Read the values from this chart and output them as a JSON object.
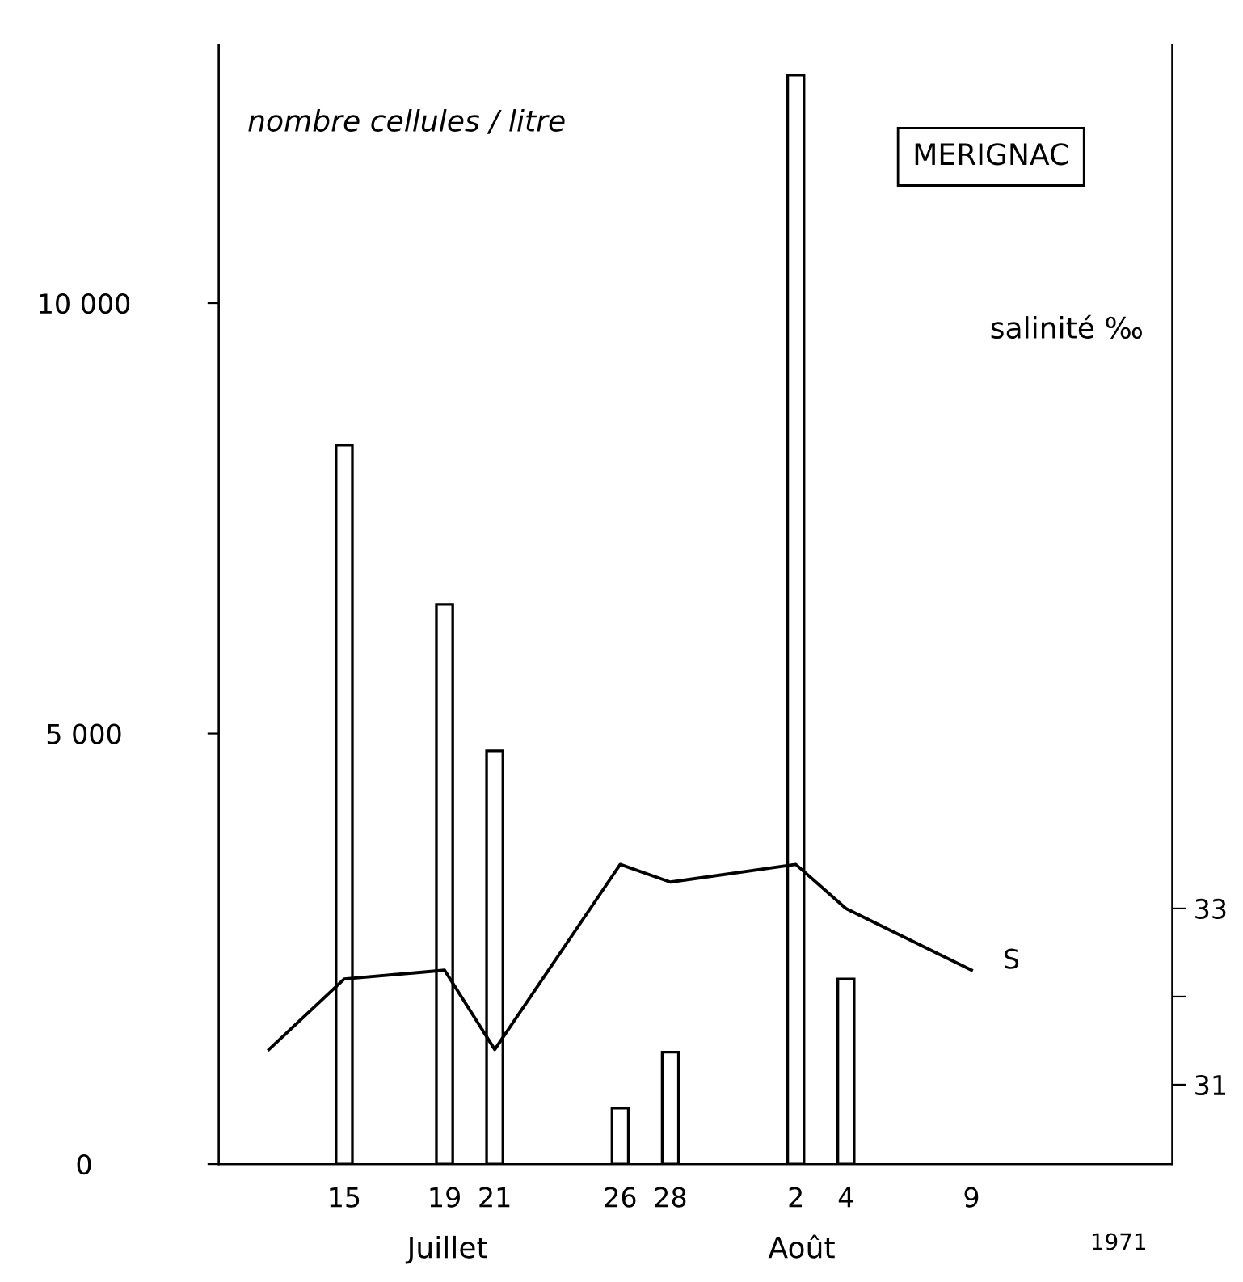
{
  "chart_data": {
    "type": "bar",
    "title": "MERIGNAC",
    "ylabel": "nombre cellules / litre",
    "y2label": "salinité ‰",
    "series": [
      {
        "color": "#ffffff",
        "x": [
          "1971-07-15",
          "1971-07-19",
          "1971-07-21",
          "1971-07-26",
          "1971-07-28",
          "1971-08-02",
          "1971-08-04"
        ],
        "values": [
          8350,
          6500,
          4800,
          650,
          1300,
          12650,
          2150
        ]
      },
      {
        "type": "line",
        "name": "S",
        "axis": "y2",
        "color": "#000000",
        "x": [
          "1971-07-12",
          "1971-07-15",
          "1971-07-19",
          "1971-07-21",
          "1971-07-26",
          "1971-07-28",
          "1971-08-02",
          "1971-08-04",
          "1971-08-09"
        ],
        "values": [
          31.4,
          32.2,
          32.3,
          31.4,
          33.5,
          33.3,
          33.5,
          33.0,
          32.3
        ]
      }
    ],
    "xlim": [
      "1971-07-10",
      "1971-08-17"
    ],
    "xticks": [
      {
        "value": "1971-07-15",
        "label": "15"
      },
      {
        "value": "1971-07-19",
        "label": "19"
      },
      {
        "value": "1971-07-21",
        "label": "21"
      },
      {
        "value": "1971-07-26",
        "label": "26"
      },
      {
        "value": "1971-07-28",
        "label": "28"
      },
      {
        "value": "1971-08-02",
        "label": "2"
      },
      {
        "value": "1971-08-04",
        "label": "4"
      },
      {
        "value": "1971-08-09",
        "label": "9"
      }
    ],
    "ylim": [
      0,
      13000
    ],
    "yticks": [
      0,
      {
        "value": 5000,
        "label": "5 000"
      },
      {
        "value": 10000,
        "label": "10 000"
      }
    ],
    "y2lim": [
      30.1,
      42.8
    ],
    "y2ticks": [
      31,
      {
        "value": 32,
        "label": null
      },
      33
    ],
    "annotations": [
      "Juillet",
      "Août",
      "1971"
    ],
    "grid": false,
    "legend": false
  }
}
